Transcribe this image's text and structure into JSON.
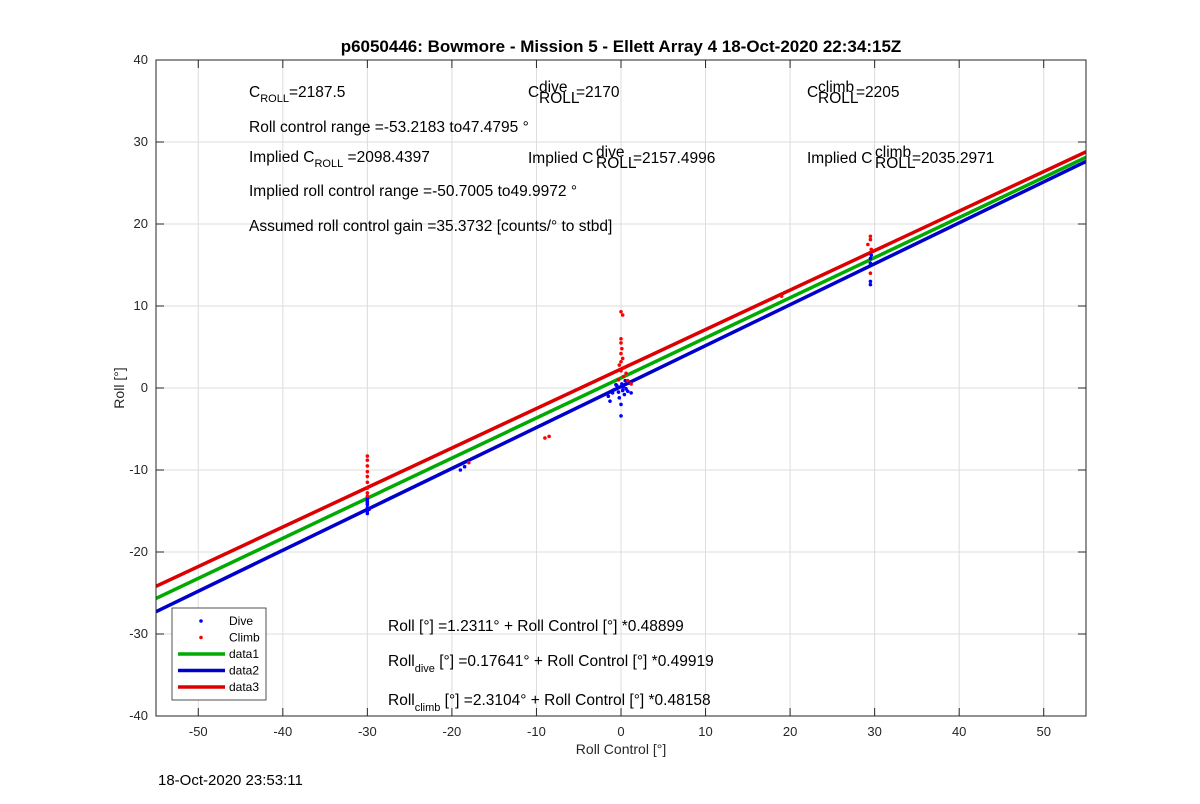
{
  "chart_data": {
    "type": "scatter",
    "title": "p6050446: Bowmore - Mission 5 - Ellett Array 4 18-Oct-2020 22:34:15Z",
    "xlabel": "Roll Control [°]",
    "ylabel": "Roll [°]",
    "xlim": [
      -55,
      55
    ],
    "ylim": [
      -40,
      40
    ],
    "xticks": [
      -50,
      -40,
      -30,
      -20,
      -10,
      0,
      10,
      20,
      30,
      40,
      50
    ],
    "yticks": [
      -40,
      -30,
      -20,
      -10,
      0,
      10,
      20,
      30,
      40
    ],
    "grid": true,
    "legend_position": "bottom-left",
    "series": [
      {
        "name": "Dive",
        "kind": "points",
        "color": "#0000ff",
        "points": [
          [
            -30,
            -13.8
          ],
          [
            -30,
            -14.2
          ],
          [
            -30,
            -14.6
          ],
          [
            -30,
            -15.0
          ],
          [
            -30,
            -15.3
          ],
          [
            -30,
            -14.0
          ],
          [
            -30,
            -13.5
          ],
          [
            -29.8,
            -14.8
          ],
          [
            -19,
            -10.0
          ],
          [
            -18.5,
            -9.6
          ],
          [
            -1.5,
            -1.0
          ],
          [
            -1.3,
            -1.6
          ],
          [
            -1,
            -0.6
          ],
          [
            -0.8,
            -0.2
          ],
          [
            -0.5,
            0.3
          ],
          [
            -0.3,
            -0.5
          ],
          [
            -0.2,
            -1.2
          ],
          [
            0,
            -3.4
          ],
          [
            0,
            -2.0
          ],
          [
            0.1,
            0.5
          ],
          [
            0.2,
            -0.3
          ],
          [
            0.3,
            0.2
          ],
          [
            0.4,
            -0.8
          ],
          [
            0.6,
            -0.1
          ],
          [
            0.8,
            -0.4
          ],
          [
            1,
            0.6
          ],
          [
            1.2,
            -0.6
          ],
          [
            0.5,
            0.9
          ],
          [
            -0.6,
            0.4
          ],
          [
            0.2,
            0.1
          ],
          [
            29.5,
            12.6
          ],
          [
            29.5,
            13.0
          ],
          [
            29.5,
            15.2
          ],
          [
            29.5,
            15.8
          ],
          [
            29.6,
            16.2
          ]
        ]
      },
      {
        "name": "Climb",
        "kind": "points",
        "color": "#ff0000",
        "points": [
          [
            -30,
            -8.3
          ],
          [
            -30,
            -8.8
          ],
          [
            -30,
            -9.5
          ],
          [
            -30,
            -10.2
          ],
          [
            -30,
            -10.8
          ],
          [
            -30,
            -11.5
          ],
          [
            -30,
            -12.2
          ],
          [
            -30,
            -12.8
          ],
          [
            -30,
            -13.2
          ],
          [
            -18,
            -9.1
          ],
          [
            -9,
            -6.1
          ],
          [
            -8.5,
            -5.9
          ],
          [
            0,
            9.3
          ],
          [
            0.2,
            8.9
          ],
          [
            0,
            6.0
          ],
          [
            0,
            5.5
          ],
          [
            0.1,
            4.8
          ],
          [
            0,
            4.2
          ],
          [
            0.2,
            3.6
          ],
          [
            0,
            3.2
          ],
          [
            -0.2,
            2.8
          ],
          [
            0.4,
            2.5
          ],
          [
            0,
            2.1
          ],
          [
            0.6,
            1.8
          ],
          [
            0.3,
            1.4
          ],
          [
            -0.3,
            1.0
          ],
          [
            0.8,
            0.9
          ],
          [
            1.2,
            0.5
          ],
          [
            19,
            11.2
          ],
          [
            29.2,
            17.5
          ],
          [
            29.5,
            18.1
          ],
          [
            29.5,
            18.5
          ],
          [
            29.6,
            16.9
          ],
          [
            29.5,
            14.0
          ]
        ]
      },
      {
        "name": "data1",
        "kind": "line",
        "color": "#00aa00",
        "intercept": 1.2311,
        "slope": 0.48899
      },
      {
        "name": "data2",
        "kind": "line",
        "color": "#0000cc",
        "intercept": 0.17641,
        "slope": 0.49919
      },
      {
        "name": "data3",
        "kind": "line",
        "color": "#dd0000",
        "intercept": 2.3104,
        "slope": 0.48158
      }
    ],
    "annotations": {
      "c_roll": {
        "prefix": "C",
        "sub": "ROLL",
        "sup": "",
        "value": "=2187.5"
      },
      "c_roll_dive": {
        "prefix": "C",
        "sub": "ROLL",
        "sup": "dive",
        "value": " =2170"
      },
      "c_roll_climb": {
        "prefix": "C",
        "sub": "ROLL",
        "sup": "climb",
        "value": " =2205"
      },
      "roll_control_range": "Roll control range =-53.2183 to47.4795 °",
      "implied_c_roll": {
        "prefix": "Implied C",
        "sub": "ROLL",
        "sup": "",
        "value": " =2098.4397"
      },
      "implied_c_roll_dive": {
        "prefix": "Implied C",
        "sub": "ROLL",
        "sup": "dive",
        "value": " =2157.4996"
      },
      "implied_c_roll_climb": {
        "prefix": "Implied C",
        "sub": "ROLL",
        "sup": "climb",
        "value": " =2035.2971"
      },
      "implied_range": "Implied roll control range =-50.7005 to49.9972 °",
      "assumed_gain": "Assumed roll control gain =35.3732 [counts/° to stbd]",
      "fit_all": {
        "prefix": "Roll",
        "sub": "",
        "rest": " [°] =1.2311° + Roll Control [°] *0.48899"
      },
      "fit_dive": {
        "prefix": "Roll",
        "sub": "dive",
        "rest": " [°] =0.17641° + Roll Control [°] *0.49919"
      },
      "fit_climb": {
        "prefix": "Roll",
        "sub": "climb",
        "rest": " [°] =2.3104° + Roll Control [°] *0.48158"
      }
    }
  },
  "footer": {
    "timestamp": "18-Oct-2020 23:53:11"
  }
}
